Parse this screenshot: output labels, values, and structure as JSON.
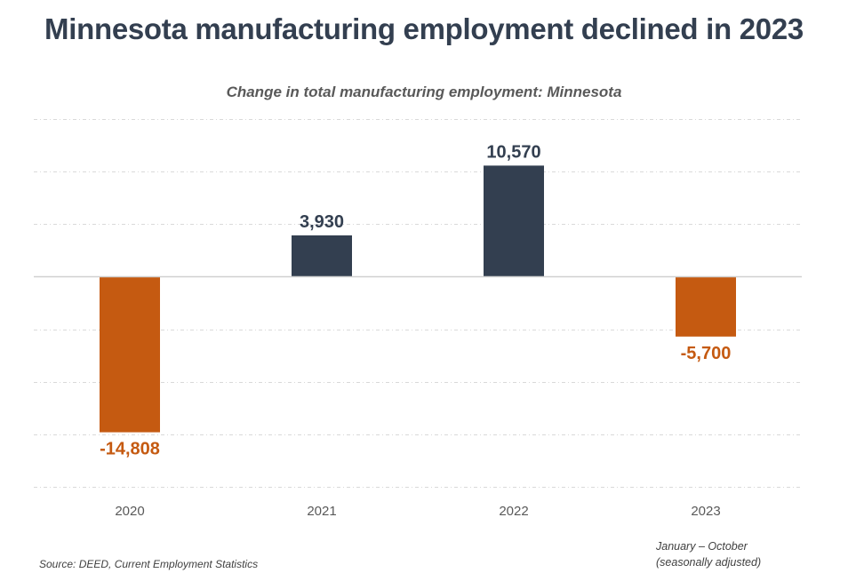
{
  "title": "Minnesota manufacturing employment declined in 2023",
  "source": "Source: DEED, Current Employment Statistics",
  "note": [
    "January – October",
    "(seasonally adjusted)"
  ],
  "colors": {
    "positive": "#333f50",
    "negative": "#c55a11",
    "title": "#333f50",
    "subtitle": "#595959",
    "gridline": "#d9d9d9",
    "axis_line": "#d0d0d0",
    "tick_label": "#595959"
  },
  "chart_data": {
    "type": "bar",
    "title": "Change in total manufacturing employment: Minnesota",
    "xlabel": "",
    "ylabel": "",
    "categories": [
      "2020",
      "2021",
      "2022",
      "2023"
    ],
    "values": [
      -14808,
      3930,
      10570,
      -5700
    ],
    "data_labels": [
      "-14,808",
      "3,930",
      "10,570",
      "-5,700"
    ],
    "ylim": [
      -20000,
      15000
    ],
    "gridline_step": 5000,
    "grid": true,
    "legend": "none",
    "y_tick_labels_shown": false
  }
}
